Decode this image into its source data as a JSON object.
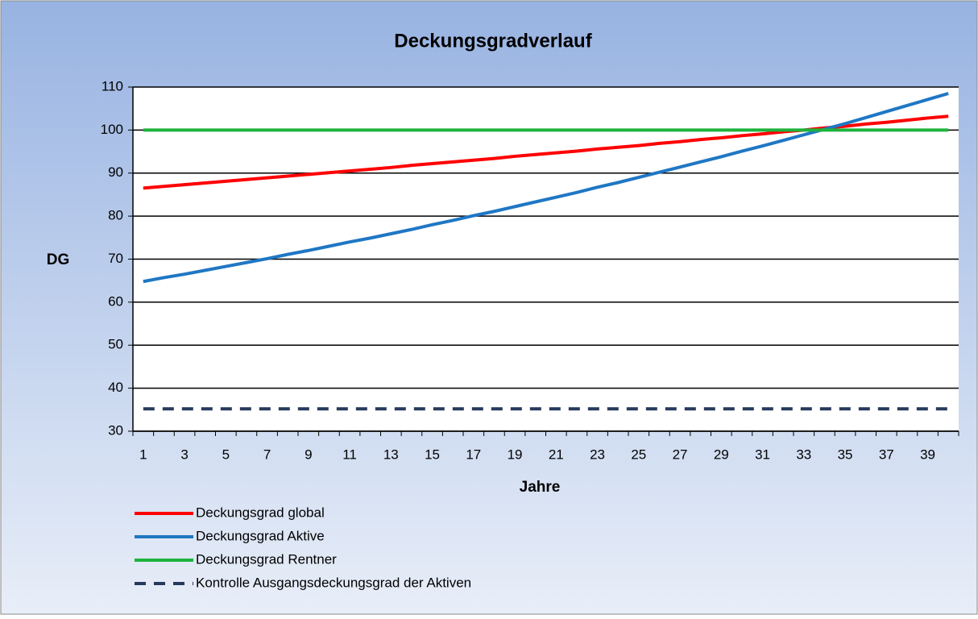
{
  "chart_data": {
    "type": "line",
    "title": "Deckungsgradverlauf",
    "y_label": "DG",
    "x_label": "Jahre",
    "categories": [
      1,
      null,
      3,
      null,
      5,
      null,
      7,
      null,
      9,
      null,
      11,
      null,
      13,
      null,
      15,
      null,
      17,
      null,
      19,
      null,
      21,
      null,
      23,
      null,
      25,
      null,
      27,
      null,
      29,
      null,
      31,
      null,
      33,
      null,
      35,
      null,
      37,
      null,
      39,
      null
    ],
    "series": [
      {
        "name": "Deckungsgrad global",
        "color": "#ff0000",
        "style": "solid",
        "values": [
          86.5,
          86.9,
          87.3,
          87.7,
          88.1,
          88.5,
          88.9,
          89.3,
          89.7,
          90.1,
          90.5,
          90.9,
          91.3,
          91.8,
          92.2,
          92.6,
          93.0,
          93.4,
          93.9,
          94.3,
          94.7,
          95.1,
          95.6,
          96.0,
          96.4,
          96.9,
          97.3,
          97.8,
          98.2,
          98.7,
          99.1,
          99.6,
          100.0,
          100.5,
          100.9,
          101.4,
          101.8,
          102.3,
          102.8,
          103.2
        ]
      },
      {
        "name": "Deckungsgrad Aktive",
        "color": "#1f77c4",
        "style": "solid",
        "values": [
          64.8,
          65.7,
          66.5,
          67.4,
          68.3,
          69.2,
          70.1,
          71.1,
          72.0,
          73.0,
          74.0,
          74.9,
          75.9,
          76.9,
          78.0,
          79.0,
          80.1,
          81.1,
          82.2,
          83.3,
          84.4,
          85.5,
          86.7,
          87.8,
          89.0,
          90.2,
          91.4,
          92.6,
          93.8,
          95.1,
          96.3,
          97.6,
          98.9,
          100.2,
          101.5,
          102.9,
          104.3,
          105.7,
          107.1,
          108.5
        ]
      },
      {
        "name": "Deckungsgrad Rentner",
        "color": "#1db33c",
        "style": "solid",
        "values": [
          100,
          100,
          100,
          100,
          100,
          100,
          100,
          100,
          100,
          100,
          100,
          100,
          100,
          100,
          100,
          100,
          100,
          100,
          100,
          100,
          100,
          100,
          100,
          100,
          100,
          100,
          100,
          100,
          100,
          100,
          100,
          100,
          100,
          100,
          100,
          100,
          100,
          100,
          100,
          100
        ]
      },
      {
        "name": "Kontrolle Ausgangsdeckungsgrad der Aktiven",
        "color": "#263a5c",
        "style": "dashed",
        "values": [
          35.2,
          35.2,
          35.2,
          35.2,
          35.2,
          35.2,
          35.2,
          35.2,
          35.2,
          35.2,
          35.2,
          35.2,
          35.2,
          35.2,
          35.2,
          35.2,
          35.2,
          35.2,
          35.2,
          35.2,
          35.2,
          35.2,
          35.2,
          35.2,
          35.2,
          35.2,
          35.2,
          35.2,
          35.2,
          35.2,
          35.2,
          35.2,
          35.2,
          35.2,
          35.2,
          35.2,
          35.2,
          35.2,
          35.2,
          35.2
        ]
      }
    ],
    "ylim": [
      30,
      110
    ],
    "yticks": [
      30,
      40,
      50,
      60,
      70,
      80,
      90,
      100,
      110
    ],
    "grid": true,
    "legend": "bottom-left"
  }
}
